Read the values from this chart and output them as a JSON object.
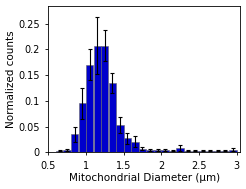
{
  "bar_centers": [
    0.65,
    0.75,
    0.85,
    0.95,
    1.05,
    1.15,
    1.25,
    1.35,
    1.45,
    1.55,
    1.65,
    1.75,
    1.85,
    1.95,
    2.05,
    2.15,
    2.25,
    2.35,
    2.45,
    2.55,
    2.65,
    2.75,
    2.85,
    2.95
  ],
  "bar_heights": [
    0.003,
    0.005,
    0.035,
    0.095,
    0.17,
    0.207,
    0.207,
    0.135,
    0.053,
    0.027,
    0.021,
    0.007,
    0.005,
    0.005,
    0.005,
    0.003,
    0.008,
    0.003,
    0.003,
    0.003,
    0.003,
    0.003,
    0.003,
    0.005
  ],
  "error_bars": [
    0.001,
    0.002,
    0.015,
    0.03,
    0.03,
    0.055,
    0.03,
    0.02,
    0.015,
    0.01,
    0.01,
    0.003,
    0.002,
    0.002,
    0.002,
    0.001,
    0.006,
    0.001,
    0.001,
    0.001,
    0.001,
    0.001,
    0.001,
    0.003
  ],
  "bar_width": 0.098,
  "bar_color": "#0000cc",
  "bar_edgecolor": "#666666",
  "xlabel": "Mitochondrial Diameter (μm)",
  "ylabel": "Normalized counts",
  "xlim": [
    0.55,
    3.05
  ],
  "ylim": [
    0,
    0.285
  ],
  "xticks": [
    0.5,
    1.0,
    1.5,
    2.0,
    2.5,
    3.0
  ],
  "xticklabels": [
    "0.5",
    "1",
    "1.5",
    "2",
    "2.5",
    "3"
  ],
  "yticks": [
    0.0,
    0.05,
    0.1,
    0.15,
    0.2,
    0.25
  ],
  "yticklabels": [
    "0",
    "0.05",
    "0.1",
    "0.15",
    "0.2",
    "0.25"
  ],
  "xlabel_fontsize": 7.5,
  "ylabel_fontsize": 7.5,
  "tick_fontsize": 7,
  "figsize": [
    2.46,
    1.89
  ],
  "dpi": 100,
  "background_color": "#ffffff",
  "ecolor": "#000000",
  "capsize": 1.5,
  "elinewidth": 0.8
}
